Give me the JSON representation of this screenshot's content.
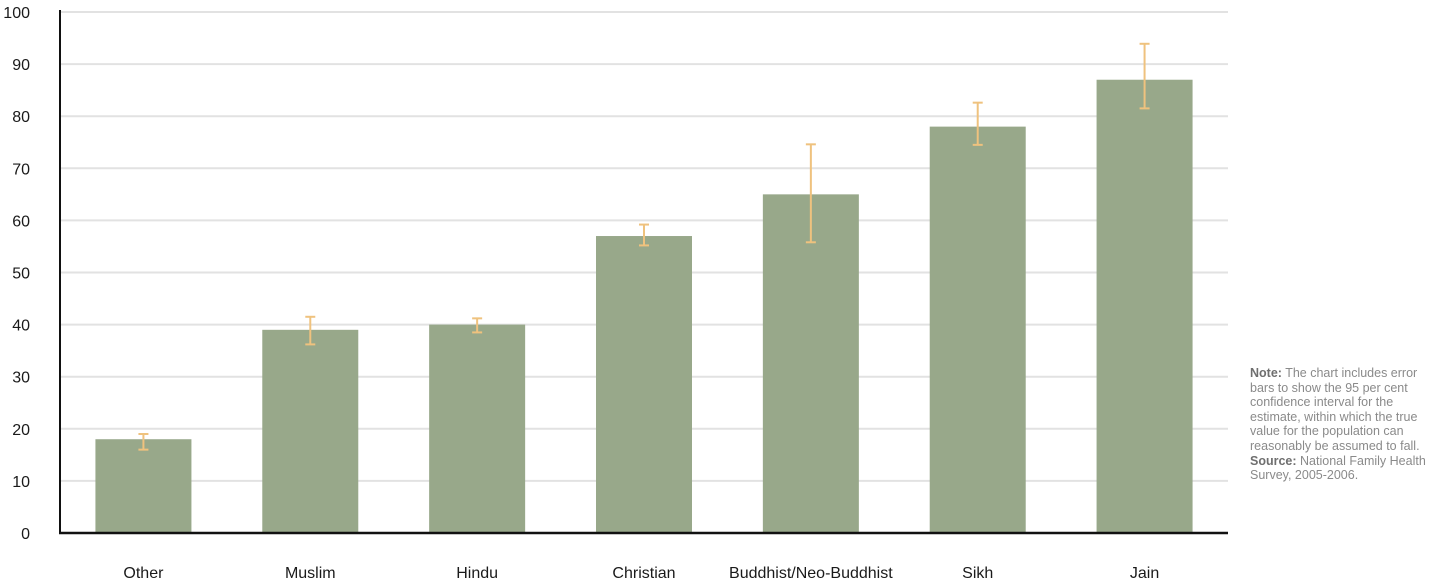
{
  "chart_data": {
    "type": "bar",
    "categories": [
      "Other",
      "Muslim",
      "Hindu",
      "Christian",
      "Buddhist/Neo-Buddhist",
      "Sikh",
      "Jain"
    ],
    "values": [
      18,
      39,
      40,
      57,
      65,
      78,
      87
    ],
    "error_low": [
      16,
      36.2,
      38.5,
      55.2,
      55.8,
      74.5,
      81.5
    ],
    "error_high": [
      19,
      41.5,
      41.2,
      59.2,
      74.6,
      82.6,
      93.9
    ],
    "title": "",
    "xlabel": "",
    "ylabel": "",
    "ylim": [
      0,
      100
    ],
    "yticks": [
      0,
      10,
      20,
      30,
      40,
      50,
      60,
      70,
      80,
      90,
      100
    ],
    "grid": true,
    "colors": {
      "bar": "#98a88a",
      "error_bar": "#efc27e",
      "grid": "#e2e2e2",
      "axis": "#111111"
    }
  },
  "note": {
    "label": "Note:",
    "text": "The chart includes error bars to show the 95 per cent confidence interval for the estimate, within which the true value for the population can reasonably be assumed to fall.",
    "source_label": "Source:",
    "source_text": "National Family Health Survey, 2005-2006."
  }
}
